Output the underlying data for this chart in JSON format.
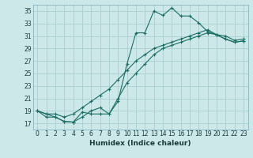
{
  "xlabel": "Humidex (Indice chaleur)",
  "bg_color": "#cce8e8",
  "grid_color": "#aacece",
  "line_color": "#1a6e64",
  "xlim": [
    -0.5,
    23.5
  ],
  "ylim": [
    16.0,
    36.0
  ],
  "yticks": [
    17,
    19,
    21,
    23,
    25,
    27,
    29,
    31,
    33,
    35
  ],
  "xticks": [
    0,
    1,
    2,
    3,
    4,
    5,
    6,
    7,
    8,
    9,
    10,
    11,
    12,
    13,
    14,
    15,
    16,
    17,
    18,
    19,
    20,
    21,
    22,
    23
  ],
  "line1_x": [
    0,
    1,
    2,
    3,
    4,
    5,
    6,
    7,
    8,
    9,
    10,
    11,
    12,
    13,
    14,
    15,
    16,
    17,
    18,
    19,
    20,
    21,
    22,
    23
  ],
  "line1_y": [
    19.0,
    18.0,
    18.0,
    17.3,
    17.2,
    18.8,
    18.5,
    18.5,
    18.5,
    20.5,
    26.5,
    31.5,
    31.5,
    35.0,
    34.3,
    35.5,
    34.2,
    34.2,
    33.1,
    31.7,
    31.2,
    31.0,
    30.3,
    30.5
  ],
  "line2_x": [
    0,
    1,
    2,
    3,
    4,
    5,
    6,
    7,
    8,
    9,
    10,
    11,
    12,
    13,
    14,
    15,
    16,
    17,
    18,
    19,
    20,
    21,
    22,
    23
  ],
  "line2_y": [
    19.0,
    18.5,
    18.5,
    18.0,
    18.5,
    19.5,
    20.5,
    21.5,
    22.5,
    24.0,
    25.5,
    27.0,
    28.0,
    29.0,
    29.5,
    30.0,
    30.5,
    31.0,
    31.5,
    32.0,
    31.2,
    30.5,
    30.0,
    30.2
  ],
  "line3_x": [
    0,
    1,
    2,
    3,
    4,
    5,
    6,
    7,
    8,
    9,
    10,
    11,
    12,
    13,
    14,
    15,
    16,
    17,
    18,
    19,
    20,
    21,
    22,
    23
  ],
  "line3_y": [
    19.0,
    18.5,
    18.0,
    17.3,
    17.2,
    18.0,
    19.0,
    19.5,
    18.5,
    21.0,
    23.5,
    25.0,
    26.5,
    28.0,
    29.0,
    29.5,
    30.0,
    30.5,
    31.0,
    31.5,
    31.2,
    30.5,
    30.0,
    30.2
  ]
}
